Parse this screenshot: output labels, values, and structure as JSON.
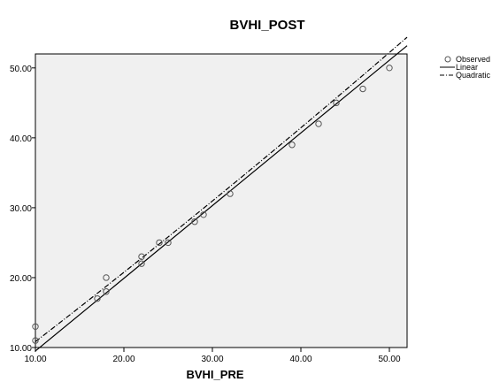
{
  "chart_data": {
    "type": "scatter",
    "title": "BVHI_POST",
    "xlabel": "BVHI_PRE",
    "ylabel": "",
    "xlim": [
      10,
      52
    ],
    "ylim": [
      10,
      52
    ],
    "x_ticks": [
      "10.00",
      "20.00",
      "30.00",
      "40.00",
      "50.00"
    ],
    "y_ticks": [
      "10.00",
      "20.00",
      "30.00",
      "40.00",
      "50.00"
    ],
    "grid": false,
    "legend_position": "top-right",
    "legend": {
      "observed": "Observed",
      "linear": "Linear",
      "quadratic": "Quadratic"
    },
    "observed": {
      "x": [
        10,
        10,
        17,
        18,
        18,
        22,
        22,
        24,
        25,
        28,
        29,
        32,
        39,
        42,
        44,
        47,
        50
      ],
      "y": [
        11,
        13,
        17,
        18,
        20,
        22,
        23,
        25,
        25,
        28,
        29,
        32,
        39,
        42,
        45,
        47,
        50
      ]
    },
    "linear_fit": {
      "intercept": -0.9,
      "slope": 1.04
    },
    "quadratic_fit": {
      "a": 1.2,
      "b": 0.95,
      "c": 0.0014
    },
    "colors": {
      "plot_background": "#f0f0f0",
      "axis": "#000000",
      "marker": "#555555",
      "line": "#000000"
    }
  }
}
